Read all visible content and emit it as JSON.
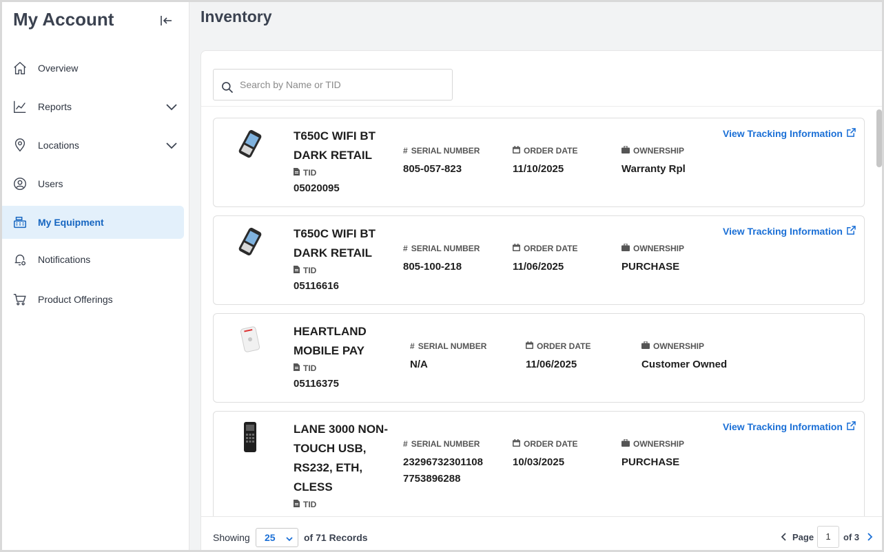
{
  "sidebar": {
    "title": "My Account",
    "items": [
      {
        "label": "Overview",
        "icon": "home-icon"
      },
      {
        "label": "Reports",
        "icon": "chart-line-icon"
      },
      {
        "label": "Locations",
        "icon": "map-pin-icon"
      },
      {
        "label": "Users",
        "icon": "user-circle-icon"
      },
      {
        "label": "My Equipment",
        "icon": "cash-register-icon"
      },
      {
        "label": "Notifications",
        "icon": "bell-gear-icon"
      },
      {
        "label": "Product Offerings",
        "icon": "cart-icon"
      }
    ],
    "active_item": "My Equipment"
  },
  "main": {
    "title": "Inventory",
    "search": {
      "placeholder": "Search by Name or TID",
      "value": ""
    },
    "labels": {
      "tid": "TID",
      "serial": "SERIAL NUMBER",
      "order_date": "ORDER DATE",
      "ownership": "OWNERSHIP",
      "track": "View Tracking Information"
    },
    "items": [
      {
        "name": "T650C WIFI BT DARK RETAIL",
        "tid": "05020095",
        "serial": "805-057-823",
        "order_date": "11/10/2025",
        "ownership": "Warranty Rpl"
      },
      {
        "name": "T650C WIFI BT DARK RETAIL",
        "tid": "05116616",
        "serial": "805-100-218",
        "order_date": "11/06/2025",
        "ownership": "PURCHASE"
      },
      {
        "name": "HEARTLAND MOBILE PAY",
        "tid": "05116375",
        "serial": "N/A",
        "order_date": "11/06/2025",
        "ownership": "Customer Owned"
      },
      {
        "name": "LANE 3000 NON-TOUCH USB, RS232, ETH, CLESS",
        "tid": "",
        "serial": "23296732301108 7753896288",
        "order_date": "10/03/2025",
        "ownership": "PURCHASE"
      }
    ],
    "footer": {
      "showing_label": "Showing",
      "page_size": "25",
      "records_text": "of 71 Records",
      "page_label": "Page",
      "current_page": "1",
      "of_pages": "of 3"
    }
  },
  "colors": {
    "accent": "#1a6fd6",
    "active_bg": "#e3f0fb",
    "active_text": "#1565c0"
  }
}
